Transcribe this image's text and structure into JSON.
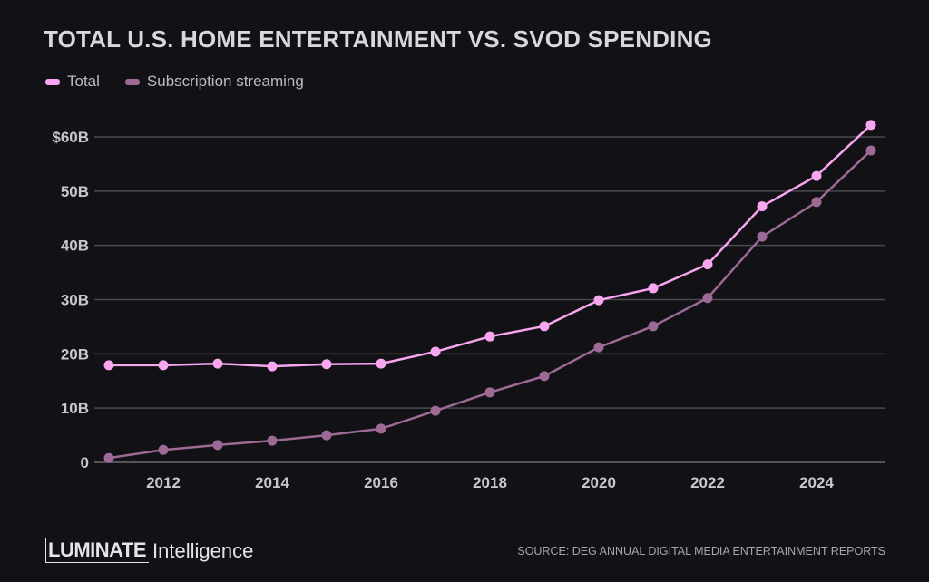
{
  "chart_data": {
    "type": "line",
    "title": "TOTAL U.S. HOME ENTERTAINMENT VS. SVOD SPENDING",
    "x": [
      2011,
      2012,
      2013,
      2014,
      2015,
      2016,
      2017,
      2018,
      2019,
      2020,
      2021,
      2022,
      2023,
      2024,
      2025
    ],
    "series": [
      {
        "name": "Total",
        "color": "#f7a6ef",
        "values": [
          17.9,
          17.9,
          18.2,
          17.7,
          18.1,
          18.2,
          20.4,
          23.2,
          25.1,
          29.9,
          32.1,
          36.5,
          47.2,
          52.8,
          62.2
        ]
      },
      {
        "name": "Subscription streaming",
        "color": "#9c6a94",
        "values": [
          0.8,
          2.3,
          3.2,
          4.0,
          5.0,
          6.2,
          9.5,
          12.9,
          15.9,
          21.2,
          25.1,
          30.3,
          41.6,
          48.0,
          57.5
        ]
      }
    ],
    "xticks": [
      "2012",
      "2014",
      "2016",
      "2018",
      "2020",
      "2022",
      "2024"
    ],
    "xtick_values": [
      2012,
      2014,
      2016,
      2018,
      2020,
      2022,
      2024
    ],
    "yticks": [
      "0",
      "10B",
      "20B",
      "30B",
      "40B",
      "50B",
      "$60B"
    ],
    "ytick_values": [
      0,
      10,
      20,
      30,
      40,
      50,
      60
    ],
    "xlim": [
      2011,
      2025
    ],
    "ylim": [
      0,
      60
    ],
    "grid": "horizontal",
    "legend": "top-left",
    "xlabel": "",
    "ylabel": ""
  },
  "footer": {
    "logo_bold": "LUMINATE",
    "logo_light": "Intelligence",
    "source": "SOURCE: DEG ANNUAL DIGITAL MEDIA ENTERTAINMENT REPORTS"
  },
  "colors": {
    "background": "#121116",
    "grid": "#4a4950"
  }
}
